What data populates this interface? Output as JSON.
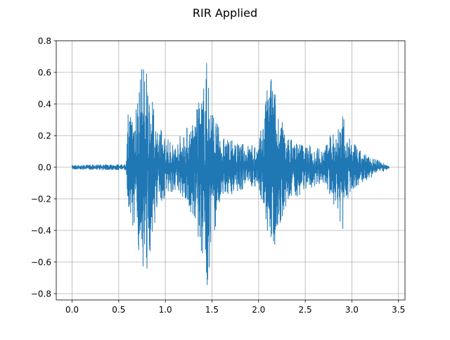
{
  "chart_data": {
    "type": "line",
    "title": "RIR Applied",
    "xlabel": "",
    "ylabel": "",
    "xlim": [
      -0.17,
      3.57
    ],
    "ylim": [
      -0.84,
      0.8
    ],
    "grid": true,
    "color": "#1f77b4",
    "xticks": [
      "0.0",
      "0.5",
      "1.0",
      "1.5",
      "2.0",
      "2.5",
      "3.0",
      "3.5"
    ],
    "xtick_values": [
      0,
      0.5,
      1.0,
      1.5,
      2.0,
      2.5,
      3.0,
      3.5
    ],
    "yticks": [
      "0.8",
      "0.6",
      "0.4",
      "0.2",
      "0.0",
      "−0.2",
      "−0.4",
      "−0.6",
      "−0.8"
    ],
    "ytick_values": [
      0.8,
      0.6,
      0.4,
      0.2,
      0.0,
      -0.2,
      -0.4,
      -0.6,
      -0.8
    ],
    "envelope": {
      "t": [
        0.0,
        0.58,
        0.6,
        0.62,
        0.7,
        0.75,
        0.78,
        0.85,
        0.9,
        1.0,
        1.1,
        1.2,
        1.3,
        1.4,
        1.45,
        1.5,
        1.6,
        1.8,
        2.0,
        2.08,
        2.12,
        2.15,
        2.2,
        2.3,
        2.5,
        2.7,
        2.85,
        2.9,
        2.95,
        3.1,
        3.3,
        3.4
      ],
      "upper": [
        0.015,
        0.02,
        0.35,
        0.4,
        0.5,
        0.65,
        0.72,
        0.45,
        0.3,
        0.2,
        0.15,
        0.25,
        0.3,
        0.5,
        0.72,
        0.4,
        0.2,
        0.15,
        0.15,
        0.45,
        0.64,
        0.6,
        0.4,
        0.2,
        0.15,
        0.12,
        0.3,
        0.35,
        0.2,
        0.1,
        0.04,
        0.01
      ],
      "lower": [
        -0.015,
        -0.02,
        -0.3,
        -0.35,
        -0.5,
        -0.6,
        -0.74,
        -0.5,
        -0.3,
        -0.2,
        -0.15,
        -0.2,
        -0.35,
        -0.6,
        -0.76,
        -0.5,
        -0.2,
        -0.15,
        -0.12,
        -0.4,
        -0.55,
        -0.6,
        -0.4,
        -0.25,
        -0.15,
        -0.1,
        -0.3,
        -0.42,
        -0.2,
        -0.1,
        -0.04,
        -0.01
      ]
    }
  }
}
